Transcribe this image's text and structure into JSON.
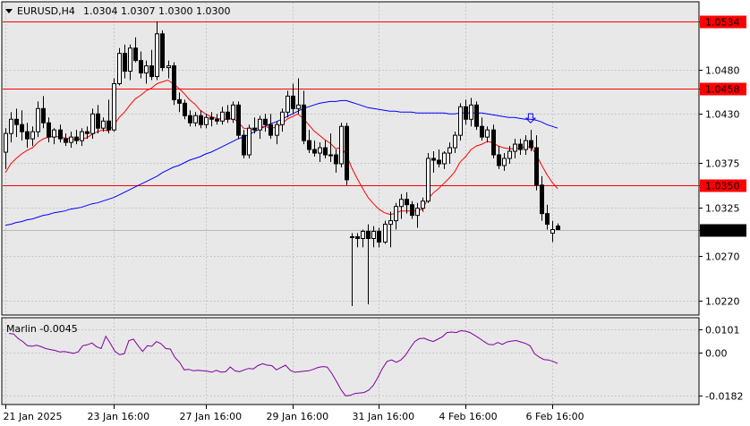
{
  "header": {
    "symbol_label": "EURUSD,H4",
    "ohlc_label": "1.0304 1.0307 1.0300 1.0300"
  },
  "colors": {
    "plot_bg": "#e8e8e8",
    "grid": "#c8c8c8",
    "bull_body": "#ffffff",
    "bear_body": "#000000",
    "level_line": "#ff0000",
    "ma_fast": "#ff0000",
    "ma_slow": "#0000ff",
    "oscillator": "#8000a0",
    "marker_arrow": "#0000ff"
  },
  "chart_data": [
    {
      "type": "candlestick",
      "symbol": "EURUSD",
      "timeframe": "H4",
      "ylim": [
        1.0205,
        1.0555
      ],
      "y_ticks": [
        1.022,
        1.027,
        1.03,
        1.0325,
        1.035,
        1.0375,
        1.043,
        1.0458,
        1.048,
        1.0534
      ],
      "y_tick_labels": [
        "1.0220",
        "1.0270",
        "1.0300",
        "1.0325",
        "1.0350",
        "1.0375",
        "1.0430",
        "1.0458",
        "1.0480",
        "1.0534"
      ],
      "highlighted_levels": [
        {
          "value": 1.0534,
          "label": "1.0534",
          "color": "#ff0000"
        },
        {
          "value": 1.0458,
          "label": "1.0458",
          "color": "#ff0000"
        },
        {
          "value": 1.035,
          "label": "1.0350",
          "color": "#ff0000"
        }
      ],
      "current_price": {
        "value": 1.03,
        "label": "1.0300"
      },
      "x_tick_labels": [
        "21 Jan 2025",
        "23 Jan 16:00",
        "27 Jan 16:00",
        "29 Jan 16:00",
        "31 Jan 16:00",
        "4 Feb 16:00",
        "6 Feb 16:00"
      ],
      "x_tick_bars": [
        0,
        20,
        37,
        53,
        69,
        85,
        101
      ],
      "candles": [
        [
          1.0387,
          1.0414,
          1.0368,
          1.0408
        ],
        [
          1.0408,
          1.0432,
          1.0398,
          1.0424
        ],
        [
          1.0424,
          1.0436,
          1.0404,
          1.0418
        ],
        [
          1.0418,
          1.0434,
          1.04,
          1.041
        ],
        [
          1.041,
          1.042,
          1.0392,
          1.0402
        ],
        [
          1.0402,
          1.0416,
          1.0394,
          1.041
        ],
        [
          1.041,
          1.0444,
          1.0404,
          1.0436
        ],
        [
          1.0436,
          1.045,
          1.0414,
          1.042
        ],
        [
          1.042,
          1.0426,
          1.0398,
          1.0404
        ],
        [
          1.0404,
          1.0414,
          1.0396,
          1.0412
        ],
        [
          1.0412,
          1.0418,
          1.0398,
          1.0402
        ],
        [
          1.0402,
          1.0408,
          1.0394,
          1.0398
        ],
        [
          1.0398,
          1.041,
          1.0392,
          1.0404
        ],
        [
          1.0404,
          1.0412,
          1.0396,
          1.04
        ],
        [
          1.04,
          1.0414,
          1.0394,
          1.041
        ],
        [
          1.041,
          1.0416,
          1.0402,
          1.0408
        ],
        [
          1.0408,
          1.0436,
          1.0402,
          1.043
        ],
        [
          1.043,
          1.044,
          1.0408,
          1.0414
        ],
        [
          1.0414,
          1.0426,
          1.041,
          1.0422
        ],
        [
          1.0422,
          1.0446,
          1.0408,
          1.0412
        ],
        [
          1.0412,
          1.047,
          1.041,
          1.0464
        ],
        [
          1.0464,
          1.0504,
          1.0462,
          1.0498
        ],
        [
          1.0498,
          1.0508,
          1.047,
          1.0478
        ],
        [
          1.0478,
          1.0508,
          1.0468,
          1.0504
        ],
        [
          1.0504,
          1.0516,
          1.0488,
          1.049
        ],
        [
          1.049,
          1.05,
          1.047,
          1.0476
        ],
        [
          1.0476,
          1.049,
          1.0464,
          1.0484
        ],
        [
          1.0484,
          1.0502,
          1.0468,
          1.0472
        ],
        [
          1.0472,
          1.0534,
          1.0468,
          1.052
        ],
        [
          1.052,
          1.0524,
          1.0478,
          1.0482
        ],
        [
          1.0482,
          1.049,
          1.047,
          1.0484
        ],
        [
          1.0484,
          1.0488,
          1.044,
          1.0446
        ],
        [
          1.0446,
          1.0454,
          1.0432,
          1.0442
        ],
        [
          1.0442,
          1.0446,
          1.0424,
          1.0428
        ],
        [
          1.0428,
          1.0434,
          1.0416,
          1.042
        ],
        [
          1.042,
          1.0432,
          1.0416,
          1.0428
        ],
        [
          1.0428,
          1.0434,
          1.0414,
          1.0418
        ],
        [
          1.0418,
          1.043,
          1.0414,
          1.0426
        ],
        [
          1.0426,
          1.0432,
          1.0416,
          1.0424
        ],
        [
          1.0424,
          1.043,
          1.0418,
          1.0422
        ],
        [
          1.0422,
          1.0438,
          1.0418,
          1.0432
        ],
        [
          1.0432,
          1.044,
          1.042,
          1.0424
        ],
        [
          1.0424,
          1.0444,
          1.042,
          1.044
        ],
        [
          1.044,
          1.0444,
          1.0402,
          1.0406
        ],
        [
          1.0406,
          1.0412,
          1.038,
          1.0384
        ],
        [
          1.0384,
          1.0418,
          1.038,
          1.0414
        ],
        [
          1.0414,
          1.0426,
          1.0408,
          1.0412
        ],
        [
          1.0412,
          1.0428,
          1.0402,
          1.0424
        ],
        [
          1.0424,
          1.043,
          1.041,
          1.0418
        ],
        [
          1.0418,
          1.043,
          1.0402,
          1.0406
        ],
        [
          1.0406,
          1.0422,
          1.0396,
          1.0418
        ],
        [
          1.0418,
          1.0436,
          1.041,
          1.0432
        ],
        [
          1.0432,
          1.0456,
          1.0426,
          1.045
        ],
        [
          1.045,
          1.0464,
          1.043,
          1.0436
        ],
        [
          1.0436,
          1.047,
          1.043,
          1.044
        ],
        [
          1.044,
          1.0456,
          1.0396,
          1.04
        ],
        [
          1.04,
          1.0412,
          1.0386,
          1.039
        ],
        [
          1.039,
          1.04,
          1.0382,
          1.0386
        ],
        [
          1.0386,
          1.0398,
          1.0376,
          1.0392
        ],
        [
          1.0392,
          1.04,
          1.038,
          1.0384
        ],
        [
          1.0384,
          1.0408,
          1.0376,
          1.0384
        ],
        [
          1.0384,
          1.039,
          1.0364,
          1.0374
        ],
        [
          1.0374,
          1.042,
          1.037,
          1.0416
        ],
        [
          1.0416,
          1.042,
          1.035,
          1.0356
        ],
        [
          1.0292,
          1.0296,
          1.0214,
          1.0292
        ],
        [
          1.0292,
          1.0296,
          1.028,
          1.029
        ],
        [
          1.029,
          1.03,
          1.028,
          1.0298
        ],
        [
          1.0298,
          1.0306,
          1.0216,
          1.029
        ],
        [
          1.029,
          1.0304,
          1.028,
          1.0298
        ],
        [
          1.0298,
          1.0302,
          1.028,
          1.0286
        ],
        [
          1.0286,
          1.031,
          1.0284,
          1.0306
        ],
        [
          1.0306,
          1.032,
          1.028,
          1.031
        ],
        [
          1.031,
          1.033,
          1.03,
          1.0326
        ],
        [
          1.0326,
          1.034,
          1.0312,
          1.0334
        ],
        [
          1.0334,
          1.0342,
          1.0318,
          1.0328
        ],
        [
          1.0328,
          1.0332,
          1.0312,
          1.0316
        ],
        [
          1.0316,
          1.033,
          1.0302,
          1.0324
        ],
        [
          1.0324,
          1.0336,
          1.032,
          1.0332
        ],
        [
          1.0332,
          1.0386,
          1.033,
          1.038
        ],
        [
          1.038,
          1.0388,
          1.0364,
          1.0378
        ],
        [
          1.0378,
          1.039,
          1.037,
          1.0374
        ],
        [
          1.0374,
          1.0388,
          1.0368,
          1.0386
        ],
        [
          1.0386,
          1.0398,
          1.0374,
          1.0392
        ],
        [
          1.0392,
          1.041,
          1.0386,
          1.0406
        ],
        [
          1.0406,
          1.0442,
          1.04,
          1.0438
        ],
        [
          1.0438,
          1.0446,
          1.0418,
          1.0424
        ],
        [
          1.0424,
          1.0448,
          1.0416,
          1.044
        ],
        [
          1.044,
          1.0444,
          1.0412,
          1.0416
        ],
        [
          1.0416,
          1.0426,
          1.04,
          1.0404
        ],
        [
          1.0404,
          1.0416,
          1.0398,
          1.0412
        ],
        [
          1.0412,
          1.0418,
          1.038,
          1.0384
        ],
        [
          1.0384,
          1.0394,
          1.0368,
          1.0372
        ],
        [
          1.0372,
          1.0386,
          1.0366,
          1.038
        ],
        [
          1.038,
          1.0394,
          1.0374,
          1.0388
        ],
        [
          1.0388,
          1.0402,
          1.038,
          1.0396
        ],
        [
          1.0396,
          1.0402,
          1.0384,
          1.039
        ],
        [
          1.039,
          1.0406,
          1.0384,
          1.04
        ],
        [
          1.04,
          1.0412,
          1.0388,
          1.0392
        ],
        [
          1.0392,
          1.0406,
          1.0344,
          1.035
        ],
        [
          1.035,
          1.036,
          1.031,
          1.0318
        ],
        [
          1.0318,
          1.0328,
          1.03,
          1.0306
        ],
        [
          1.0296,
          1.031,
          1.0286,
          1.03
        ],
        [
          1.0304,
          1.0307,
          1.03,
          1.03
        ]
      ],
      "ma_fast": [
        1.0364,
        1.0374,
        1.038,
        1.0385,
        1.0389,
        1.0392,
        1.0398,
        1.0402,
        1.0404,
        1.0405,
        1.0404,
        1.0403,
        1.0402,
        1.0401,
        1.0402,
        1.0403,
        1.0407,
        1.041,
        1.0412,
        1.0411,
        1.0417,
        1.0426,
        1.0432,
        1.044,
        1.0447,
        1.0451,
        1.0456,
        1.0459,
        1.0464,
        1.0466,
        1.0468,
        1.0464,
        1.0459,
        1.0453,
        1.0446,
        1.0441,
        1.0434,
        1.043,
        1.0427,
        1.0425,
        1.0424,
        1.0424,
        1.0425,
        1.0421,
        1.0414,
        1.0413,
        1.0413,
        1.0415,
        1.0416,
        1.0414,
        1.0415,
        1.0418,
        1.0424,
        1.0427,
        1.043,
        1.0425,
        1.0418,
        1.0411,
        1.0406,
        1.0401,
        1.0397,
        1.0391,
        1.0392,
        1.0384,
        1.0369,
        1.0357,
        1.0346,
        1.0336,
        1.0329,
        1.0323,
        1.0319,
        1.0317,
        1.0318,
        1.0321,
        1.0321,
        1.0321,
        1.0321,
        1.0323,
        1.0334,
        1.0341,
        1.0346,
        1.0352,
        1.0358,
        1.0365,
        1.0376,
        1.0382,
        1.039,
        1.0394,
        1.0396,
        1.0399,
        1.0398,
        1.0394,
        1.0392,
        1.0391,
        1.0391,
        1.0391,
        1.0393,
        1.0393,
        1.0385,
        1.0373,
        1.0362,
        1.0353,
        1.0346
      ],
      "ma_slow": [
        1.0305,
        1.0306,
        1.0308,
        1.0309,
        1.0311,
        1.0312,
        1.0314,
        1.0316,
        1.0317,
        1.0319,
        1.032,
        1.0321,
        1.0323,
        1.0324,
        1.0325,
        1.0327,
        1.0329,
        1.033,
        1.0332,
        1.0334,
        1.0336,
        1.0339,
        1.0342,
        1.0345,
        1.0348,
        1.0351,
        1.0354,
        1.0357,
        1.036,
        1.0364,
        1.0367,
        1.037,
        1.0372,
        1.0375,
        1.0378,
        1.038,
        1.0382,
        1.0385,
        1.0387,
        1.039,
        1.0393,
        1.0396,
        1.0399,
        1.0402,
        1.0404,
        1.0407,
        1.041,
        1.0413,
        1.0416,
        1.0419,
        1.0421,
        1.0424,
        1.0427,
        1.043,
        1.0433,
        1.0436,
        1.0438,
        1.044,
        1.0442,
        1.0443,
        1.0444,
        1.0444,
        1.0445,
        1.0445,
        1.0443,
        1.0441,
        1.0439,
        1.0437,
        1.0436,
        1.0435,
        1.0434,
        1.0433,
        1.0433,
        1.0432,
        1.0432,
        1.0432,
        1.0431,
        1.0431,
        1.0431,
        1.0431,
        1.0431,
        1.0431,
        1.043,
        1.043,
        1.0431,
        1.0431,
        1.0431,
        1.0431,
        1.0431,
        1.043,
        1.0429,
        1.0428,
        1.0427,
        1.0426,
        1.0426,
        1.0425,
        1.0424,
        1.0424,
        1.0423,
        1.0421,
        1.0418,
        1.0416,
        1.0414
      ],
      "signal_arrow_bar": 97
    },
    {
      "type": "line",
      "title": "Marlin -0.0045",
      "ylim": [
        -0.0215,
        0.0145
      ],
      "y_ticks": [
        0.0101,
        0.0,
        -0.0182
      ],
      "y_tick_labels": [
        "0.0101",
        "0.00",
        "-0.0182"
      ],
      "values": [
        0.0082,
        0.008,
        0.006,
        0.0048,
        0.003,
        0.0028,
        0.0032,
        0.0026,
        0.0018,
        0.0014,
        0.001,
        0.0004,
        0.0006,
        0.0002,
        -0.0002,
        0.0004,
        0.003,
        0.0034,
        0.0042,
        0.0026,
        0.0018,
        0.007,
        0.004,
        0.0006,
        -0.0008,
        -0.0004,
        0.0052,
        0.0058,
        0.003,
        0.0006,
        0.003,
        0.0028,
        0.0048,
        0.0038,
        0.0018,
        0.0016,
        -0.002,
        -0.004,
        -0.0072,
        -0.007,
        -0.0076,
        -0.0074,
        -0.0076,
        -0.0078,
        -0.0082,
        -0.0074,
        -0.0082,
        -0.008,
        -0.006,
        -0.0076,
        -0.008,
        -0.0072,
        -0.0066,
        -0.0068,
        -0.0054,
        -0.0046,
        -0.0052,
        -0.0054,
        -0.0072,
        -0.0062,
        -0.0052,
        -0.0074,
        -0.0082,
        -0.008,
        -0.0078,
        -0.0076,
        -0.007,
        -0.0062,
        -0.0058,
        -0.006,
        -0.0086,
        -0.012,
        -0.0156,
        -0.0182,
        -0.018,
        -0.0172,
        -0.017,
        -0.0168,
        -0.0158,
        -0.0138,
        -0.0104,
        -0.0066,
        -0.0036,
        -0.003,
        -0.004,
        -0.003,
        -0.001,
        0.002,
        0.0048,
        0.006,
        0.0062,
        0.0054,
        0.0048,
        0.0058,
        0.0068,
        0.0086,
        0.0088,
        0.0086,
        0.0094,
        0.0092,
        0.0086,
        0.0074,
        0.0062,
        0.0048,
        0.0036,
        0.0034,
        0.0044,
        0.0036,
        0.0046,
        0.005,
        0.0052,
        0.0046,
        0.004,
        0.003,
        -0.0004,
        -0.0018,
        -0.0028,
        -0.003,
        -0.0036,
        -0.0045
      ]
    }
  ]
}
